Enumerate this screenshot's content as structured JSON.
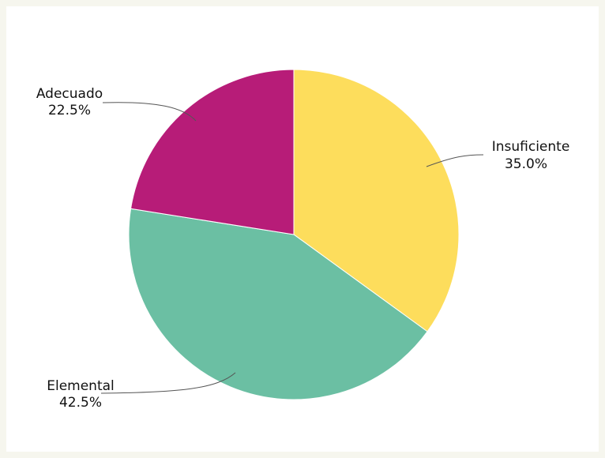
{
  "chart_data": {
    "type": "pie",
    "slices": [
      {
        "label": "Insuficiente",
        "value": 35.0,
        "pct_text": "35.0%",
        "color": "#fddd5c"
      },
      {
        "label": "Elemental",
        "value": 42.5,
        "pct_text": "42.5%",
        "color": "#6bbfa3"
      },
      {
        "label": "Adecuado",
        "value": 22.5,
        "pct_text": "22.5%",
        "color": "#b71c78"
      }
    ],
    "start_angle": "top",
    "direction": "clockwise",
    "legend": "none"
  }
}
